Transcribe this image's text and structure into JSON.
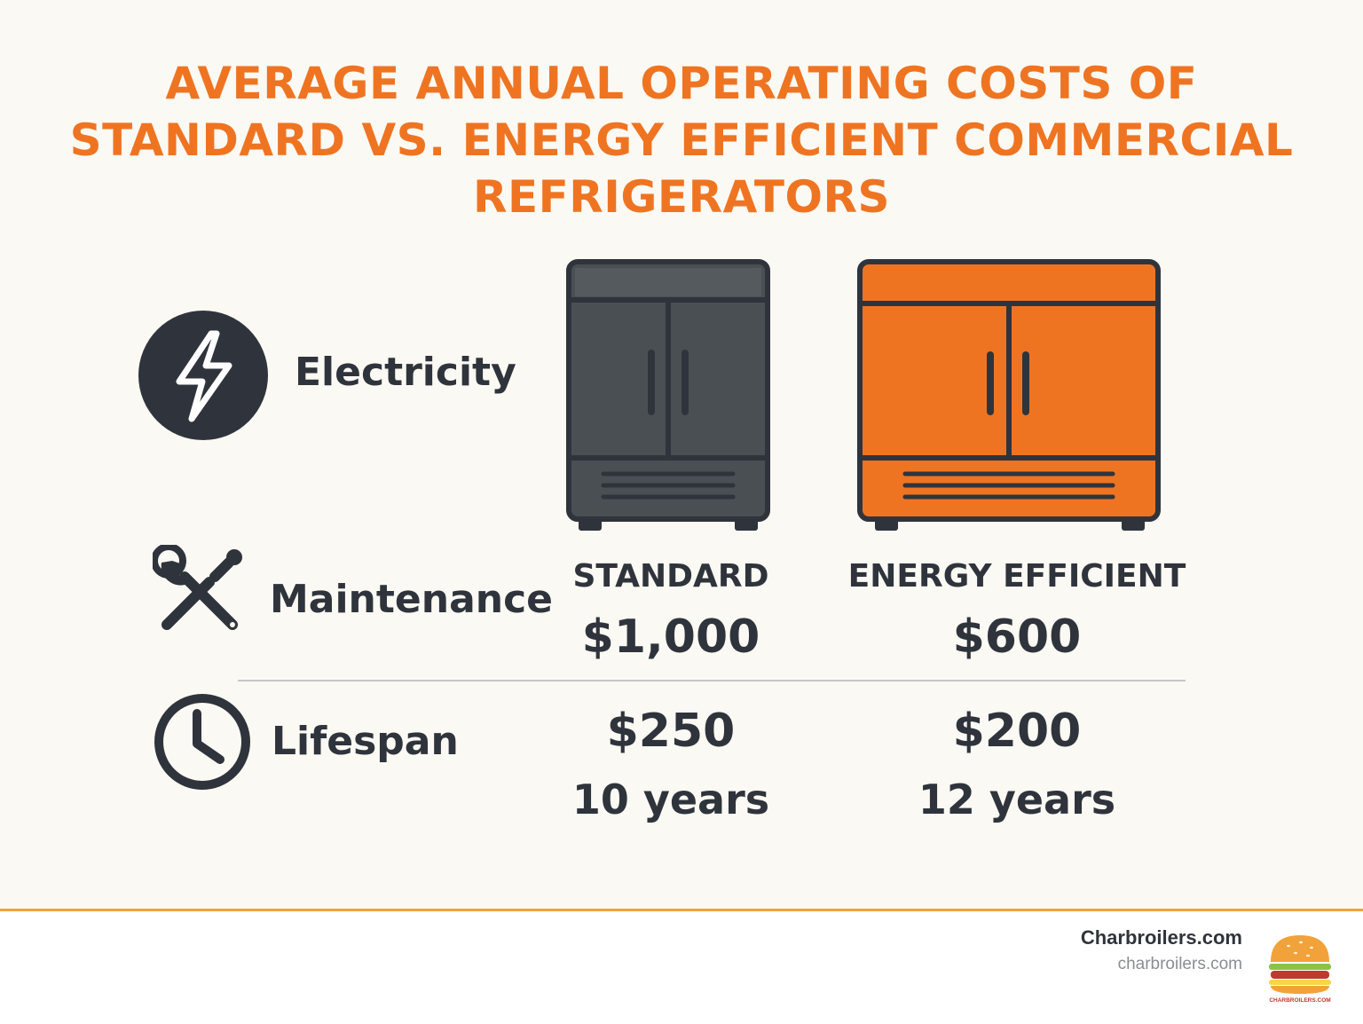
{
  "title": {
    "line1": "AVERAGE ANNUAL OPERATING COSTS OF",
    "line2": "STANDARD VS. ENERGY EFFICIENT COMMERCIAL",
    "line3": "REFRIGERATORS"
  },
  "rows": {
    "electricity": {
      "label": "Electricity",
      "icon": "lightning-bolt-icon"
    },
    "maintenance": {
      "label": "Maintenance",
      "icon": "wrench-screwdriver-icon"
    },
    "lifespan": {
      "label": "Lifespan",
      "icon": "clock-icon"
    }
  },
  "columns": {
    "standard": {
      "heading": "STANDARD",
      "electricity": "$1,000",
      "maintenance": "$250",
      "lifespan": "10 years",
      "color": "#4a4f53"
    },
    "efficient": {
      "heading": "ENERGY EFFICIENT",
      "electricity": "$600",
      "maintenance": "$200",
      "lifespan": "12 years",
      "color": "#ef7422"
    }
  },
  "colors": {
    "accent": "#ef7422",
    "text": "#2f343c",
    "footer_rule": "#f2a23a"
  },
  "footer": {
    "brand_name": "Charbroilers.com",
    "brand_url": "charbroilers.com",
    "logo_text": "CHARBROILERS.COM"
  }
}
